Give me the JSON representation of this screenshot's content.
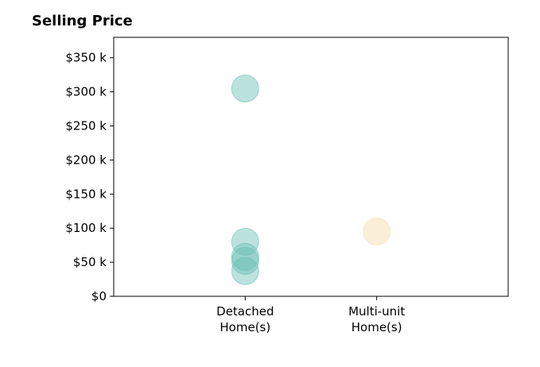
{
  "chart_data": {
    "type": "scatter",
    "title": "Selling Price",
    "xlabel": "",
    "ylabel": "",
    "categories": [
      "Detached\nHome(s)",
      "Multi-unit\nHome(s)"
    ],
    "x_range": [
      -1,
      2
    ],
    "ylim": [
      0,
      380000
    ],
    "y_ticks": [
      {
        "value": 0,
        "label": "$0"
      },
      {
        "value": 50000,
        "label": "$50 k"
      },
      {
        "value": 100000,
        "label": "$100 k"
      },
      {
        "value": 150000,
        "label": "$150 k"
      },
      {
        "value": 200000,
        "label": "$200 k"
      },
      {
        "value": 250000,
        "label": "$250 k"
      },
      {
        "value": 300000,
        "label": "$300 k"
      },
      {
        "value": 350000,
        "label": "$350 k"
      }
    ],
    "grid": false,
    "series": [
      {
        "color": "#6bbfb5",
        "points": [
          {
            "x": 0,
            "y": 305000
          },
          {
            "x": 0,
            "y": 80000
          },
          {
            "x": 0,
            "y": 58000
          },
          {
            "x": 0,
            "y": 52000
          },
          {
            "x": 0,
            "y": 37000
          }
        ]
      },
      {
        "color": "#f5deaa",
        "points": [
          {
            "x": 1,
            "y": 95000
          }
        ]
      }
    ]
  }
}
